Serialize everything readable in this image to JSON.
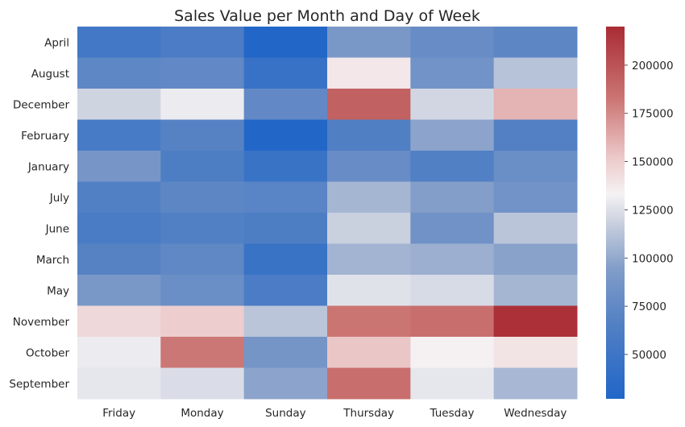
{
  "chart_data": {
    "type": "heatmap",
    "title": "Sales Value per Month and Day of Week",
    "xlabel": "",
    "ylabel": "",
    "x_categories": [
      "Friday",
      "Monday",
      "Sunday",
      "Thursday",
      "Tuesday",
      "Wednesday"
    ],
    "y_categories": [
      "April",
      "August",
      "December",
      "February",
      "January",
      "July",
      "June",
      "March",
      "May",
      "November",
      "October",
      "September"
    ],
    "values": [
      [
        53000,
        60000,
        28000,
        90000,
        78000,
        72000
      ],
      [
        73000,
        75000,
        45000,
        138000,
        85000,
        112000
      ],
      [
        120000,
        130000,
        75000,
        193000,
        121000,
        160000
      ],
      [
        58000,
        68000,
        28000,
        64000,
        98000,
        66000
      ],
      [
        88000,
        62000,
        46000,
        78000,
        65000,
        80000
      ],
      [
        65000,
        72000,
        70000,
        106000,
        95000,
        85000
      ],
      [
        59000,
        65000,
        62000,
        118000,
        84000,
        113000
      ],
      [
        68000,
        74000,
        46000,
        105000,
        103000,
        97000
      ],
      [
        90000,
        80000,
        60000,
        126000,
        123000,
        106000
      ],
      [
        145000,
        150000,
        113000,
        183000,
        186000,
        218000
      ],
      [
        130000,
        182000,
        87000,
        153000,
        134000,
        140000
      ],
      [
        128000,
        124000,
        98000,
        186000,
        128000,
        107000
      ]
    ],
    "colorbar": {
      "min": 27000,
      "max": 220000,
      "ticks": [
        50000,
        75000,
        100000,
        125000,
        150000,
        175000,
        200000
      ],
      "tick_labels": [
        "50000",
        "75000",
        "100000",
        "125000",
        "150000",
        "175000",
        "200000"
      ],
      "colormap": "vlag"
    },
    "grid": false,
    "legend": "colorbar-right"
  }
}
